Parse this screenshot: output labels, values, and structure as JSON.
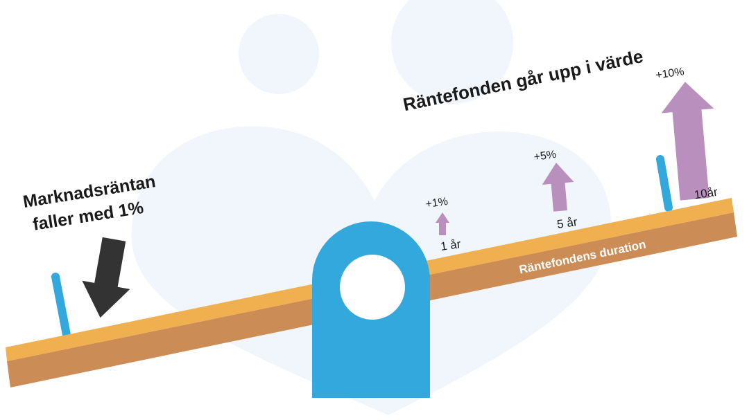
{
  "left_label": {
    "line1": "Marknadsräntan",
    "line2": "faller med 1%"
  },
  "right_title": "Räntefonden går upp i värde",
  "plank_label": "Räntefondens duration",
  "arrows": [
    {
      "change": "+1%",
      "duration": "1 år"
    },
    {
      "change": "+5%",
      "duration": "5 år"
    },
    {
      "change": "+10%",
      "duration": "10år"
    }
  ]
}
